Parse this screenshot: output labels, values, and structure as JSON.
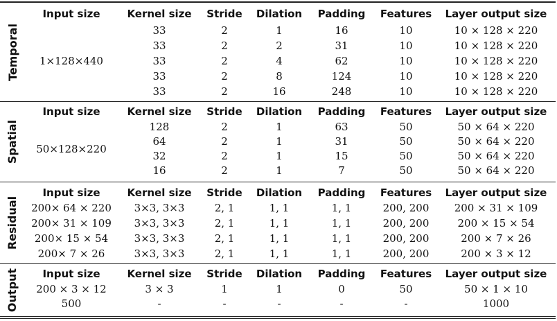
{
  "columns": [
    "Input size",
    "Kernel size",
    "Stride",
    "Dilation",
    "Padding",
    "Features",
    "Layer output size"
  ],
  "sections": [
    {
      "label": "Temporal",
      "merged_input": "1×128×440",
      "rows": [
        [
          "",
          "33",
          "2",
          "1",
          "16",
          "10",
          "10 × 128 × 220"
        ],
        [
          "",
          "33",
          "2",
          "2",
          "31",
          "10",
          "10 × 128 × 220"
        ],
        [
          "",
          "33",
          "2",
          "4",
          "62",
          "10",
          "10 × 128 × 220"
        ],
        [
          "",
          "33",
          "2",
          "8",
          "124",
          "10",
          "10 × 128 × 220"
        ],
        [
          "",
          "33",
          "2",
          "16",
          "248",
          "10",
          "10 × 128 × 220"
        ]
      ]
    },
    {
      "label": "Spatial",
      "merged_input": "50×128×220",
      "rows": [
        [
          "",
          "128",
          "2",
          "1",
          "63",
          "50",
          "50 × 64 × 220"
        ],
        [
          "",
          "64",
          "2",
          "1",
          "31",
          "50",
          "50 × 64 × 220"
        ],
        [
          "",
          "32",
          "2",
          "1",
          "15",
          "50",
          "50 × 64 × 220"
        ],
        [
          "",
          "16",
          "2",
          "1",
          "7",
          "50",
          "50 × 64 × 220"
        ]
      ]
    },
    {
      "label": "Residual",
      "merged_input": "",
      "rows": [
        [
          "200× 64 × 220",
          "3×3, 3×3",
          "2, 1",
          "1, 1",
          "1, 1",
          "200, 200",
          "200 × 31 × 109"
        ],
        [
          "200× 31 × 109",
          "3×3, 3×3",
          "2, 1",
          "1, 1",
          "1, 1",
          "200, 200",
          "200 × 15 × 54"
        ],
        [
          "200× 15 × 54",
          "3×3, 3×3",
          "2, 1",
          "1, 1",
          "1, 1",
          "200, 200",
          "200 × 7 × 26"
        ],
        [
          "200× 7 × 26",
          "3×3, 3×3",
          "2, 1",
          "1, 1",
          "1, 1",
          "200, 200",
          "200 × 3 × 12"
        ]
      ]
    },
    {
      "label": "Output",
      "merged_input": "",
      "rows": [
        [
          "200 × 3 × 12",
          "3 × 3",
          "1",
          "1",
          "0",
          "50",
          "50 × 1 × 10"
        ],
        [
          "500",
          "-",
          "-",
          "-",
          "-",
          "-",
          "1000"
        ]
      ]
    }
  ]
}
